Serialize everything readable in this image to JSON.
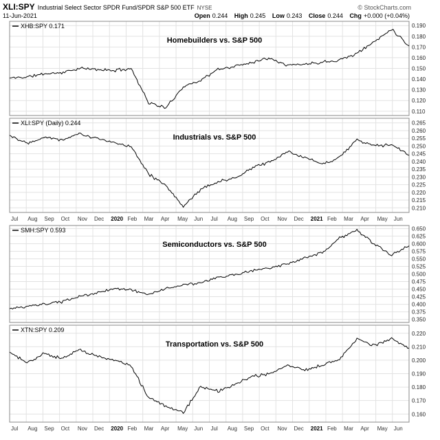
{
  "header": {
    "symbol": "XLI:SPY",
    "description": "Industrial Select Sector SPDR Fund/SPDR S&P 500 ETF",
    "exchange": "NYSE",
    "copyright": "© StockCharts.com",
    "date": "11-Jun-2021",
    "quote": {
      "open_label": "Open",
      "open": "0.244",
      "high_label": "High",
      "high": "0.245",
      "low_label": "Low",
      "low": "0.243",
      "close_label": "Close",
      "close": "0.244",
      "chg_label": "Chg",
      "chg": "+0.000 (+0.04%)"
    }
  },
  "x_axis": {
    "labels": [
      "Jul",
      "Aug",
      "Sep",
      "Oct",
      "Nov",
      "Dec",
      "2020",
      "Feb",
      "Mar",
      "Apr",
      "May",
      "Jun",
      "Jul",
      "Aug",
      "Sep",
      "Oct",
      "Nov",
      "Dec",
      "2021",
      "Feb",
      "Mar",
      "Apr",
      "May",
      "Jun"
    ],
    "bold_labels": [
      "2020",
      "2021"
    ]
  },
  "chart_data": [
    {
      "type": "line",
      "legend": "XHB:SPY 0.171",
      "title": "Homebuilders vs. S&P 500",
      "categories": [
        "Jul-2019",
        "Aug",
        "Sep",
        "Oct",
        "Nov",
        "Dec",
        "Jan-2020",
        "Feb",
        "Mar",
        "Apr",
        "May",
        "Jun",
        "Jul",
        "Aug",
        "Sep",
        "Oct",
        "Nov",
        "Dec",
        "Jan-2021",
        "Feb",
        "Mar",
        "Apr",
        "May",
        "Jun"
      ],
      "values": [
        0.141,
        0.142,
        0.145,
        0.146,
        0.15,
        0.149,
        0.148,
        0.15,
        0.118,
        0.113,
        0.133,
        0.139,
        0.149,
        0.152,
        0.156,
        0.16,
        0.153,
        0.154,
        0.156,
        0.158,
        0.164,
        0.175,
        0.187,
        0.171
      ],
      "ylim": [
        0.106,
        0.194
      ],
      "yticks": [
        0.19,
        0.18,
        0.17,
        0.16,
        0.15,
        0.14,
        0.13,
        0.12,
        0.11
      ],
      "line_color": "#000000",
      "grid": true,
      "legend_position": "top-left"
    },
    {
      "type": "line",
      "legend": "XLI:SPY (Daily) 0.244",
      "title": "Industrials vs. S&P 500",
      "categories": [
        "Jul-2019",
        "Aug",
        "Sep",
        "Oct",
        "Nov",
        "Dec",
        "Jan-2020",
        "Feb",
        "Mar",
        "Apr",
        "May",
        "Jun",
        "Jul",
        "Aug",
        "Sep",
        "Oct",
        "Nov",
        "Dec",
        "Jan-2021",
        "Feb",
        "Mar",
        "Apr",
        "May",
        "Jun"
      ],
      "values": [
        0.257,
        0.252,
        0.256,
        0.254,
        0.258,
        0.255,
        0.252,
        0.25,
        0.232,
        0.224,
        0.211,
        0.222,
        0.227,
        0.229,
        0.236,
        0.24,
        0.246,
        0.243,
        0.238,
        0.243,
        0.254,
        0.25,
        0.251,
        0.244
      ],
      "ylim": [
        0.207,
        0.268
      ],
      "yticks": [
        0.265,
        0.26,
        0.255,
        0.25,
        0.245,
        0.24,
        0.235,
        0.23,
        0.225,
        0.22,
        0.215,
        0.21
      ],
      "line_color": "#000000",
      "grid": true,
      "legend_position": "top-left"
    },
    {
      "type": "line",
      "legend": "SMH:SPY 0.593",
      "title": "Semiconductors vs. S&P 500",
      "categories": [
        "Jul-2019",
        "Aug",
        "Sep",
        "Oct",
        "Nov",
        "Dec",
        "Jan-2020",
        "Feb",
        "Mar",
        "Apr",
        "May",
        "Jun",
        "Jul",
        "Aug",
        "Sep",
        "Oct",
        "Nov",
        "Dec",
        "Jan-2021",
        "Feb",
        "Mar",
        "Apr",
        "May",
        "Jun"
      ],
      "values": [
        0.385,
        0.392,
        0.4,
        0.408,
        0.425,
        0.437,
        0.452,
        0.448,
        0.432,
        0.452,
        0.464,
        0.47,
        0.488,
        0.498,
        0.512,
        0.52,
        0.532,
        0.552,
        0.57,
        0.618,
        0.645,
        0.598,
        0.562,
        0.593
      ],
      "ylim": [
        0.34,
        0.66
      ],
      "yticks": [
        0.65,
        0.625,
        0.6,
        0.575,
        0.55,
        0.525,
        0.5,
        0.475,
        0.45,
        0.425,
        0.4,
        0.375,
        0.35
      ],
      "line_color": "#000000",
      "grid": true,
      "legend_position": "top-left"
    },
    {
      "type": "line",
      "legend": "XTN:SPY 0.209",
      "title": "Transportation vs. S&P 500",
      "categories": [
        "Jul-2019",
        "Aug",
        "Sep",
        "Oct",
        "Nov",
        "Dec",
        "Jan-2020",
        "Feb",
        "Mar",
        "Apr",
        "May",
        "Jun",
        "Jul",
        "Aug",
        "Sep",
        "Oct",
        "Nov",
        "Dec",
        "Jan-2021",
        "Feb",
        "Mar",
        "Apr",
        "May",
        "Jun"
      ],
      "values": [
        0.206,
        0.198,
        0.205,
        0.201,
        0.208,
        0.203,
        0.2,
        0.196,
        0.172,
        0.166,
        0.161,
        0.18,
        0.177,
        0.182,
        0.188,
        0.19,
        0.196,
        0.193,
        0.196,
        0.201,
        0.216,
        0.211,
        0.216,
        0.209
      ],
      "ylim": [
        0.154,
        0.226
      ],
      "yticks": [
        0.22,
        0.21,
        0.2,
        0.19,
        0.18,
        0.17,
        0.16
      ],
      "line_color": "#000000",
      "grid": true,
      "legend_position": "top-left"
    }
  ]
}
